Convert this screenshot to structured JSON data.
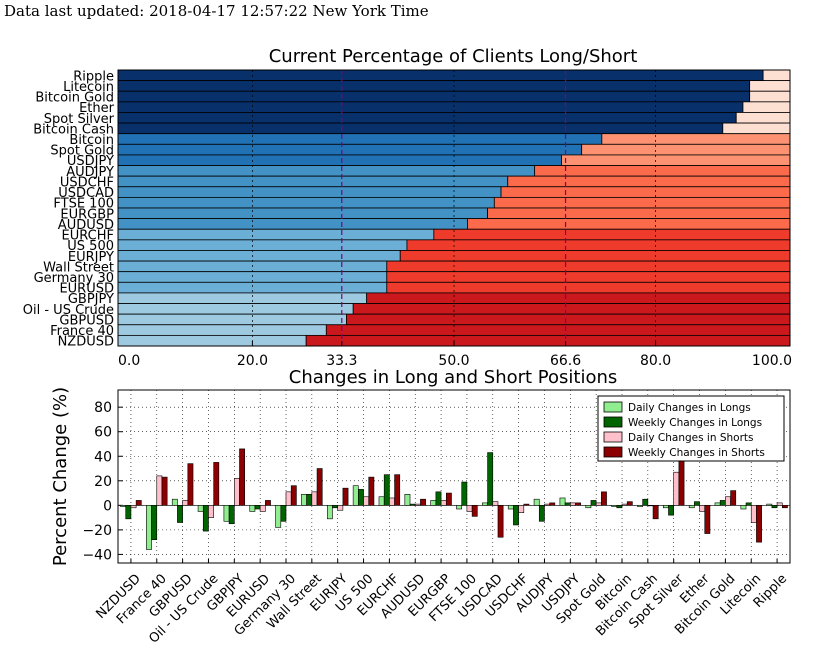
{
  "header": {
    "updated_prefix": "Data last updated: ",
    "updated_value": "2018-04-17 12:57:22 New York Time"
  },
  "colors": {
    "long_shades": [
      "#08306b",
      "#2171b5",
      "#4292c6",
      "#6baed6",
      "#9ecae1"
    ],
    "short_shades": [
      "#fee0d2",
      "#fc9272",
      "#fb6a4a",
      "#ef3b2c",
      "#cb181d"
    ],
    "threshold_line": "#800080",
    "daily_longs": "#90ee90",
    "weekly_longs": "#006400",
    "daily_shorts": "#ffc0cb",
    "weekly_shorts": "#8b0000"
  },
  "chart_data": [
    {
      "type": "bar",
      "orientation": "horizontal",
      "stacked": true,
      "title": "Current Percentage of Clients Long/Short",
      "xlim": [
        0,
        100
      ],
      "xticks": [
        "0.0",
        "20.0",
        "33.3",
        "50.0",
        "66.6",
        "80.0",
        "100.0"
      ],
      "highlight_ticks": [
        "33.3",
        "66.6"
      ],
      "threshold_lines": [
        33.3,
        66.6
      ],
      "grid": "vertical dashed",
      "categories": [
        "Ripple",
        "Litecoin",
        "Bitcoin Gold",
        "Ether",
        "Spot Silver",
        "Bitcoin Cash",
        "Bitcoin",
        "Spot Gold",
        "USDJPY",
        "AUDJPY",
        "USDCHF",
        "USDCAD",
        "FTSE 100",
        "EURGBP",
        "AUDUSD",
        "EURCHF",
        "US 500",
        "EURJPY",
        "Wall Street",
        "Germany 30",
        "EURUSD",
        "GBPJPY",
        "Oil - US Crude",
        "GBPUSD",
        "France 40",
        "NZDUSD"
      ],
      "series": [
        {
          "values": [
            96,
            94,
            94,
            93,
            92,
            90,
            72,
            69,
            66,
            62,
            58,
            57,
            56,
            55,
            52,
            47,
            43,
            42,
            40,
            40,
            40,
            37,
            35,
            34,
            31,
            28
          ]
        },
        {
          "values": [
            4,
            6,
            6,
            7,
            8,
            10,
            28,
            31,
            34,
            38,
            42,
            43,
            44,
            45,
            48,
            53,
            57,
            58,
            60,
            60,
            60,
            63,
            65,
            66,
            69,
            72
          ]
        }
      ]
    },
    {
      "type": "bar",
      "title": "Changes in Long and Short Positions",
      "ylabel": "Percent Change (%)",
      "ylim": [
        -47,
        94
      ],
      "yticks": [
        "−40",
        "−20",
        "0",
        "20",
        "40",
        "60",
        "80"
      ],
      "grid": "dotted",
      "legend": "top-right",
      "categories": [
        "NZDUSD",
        "France 40",
        "GBPUSD",
        "Oil - US Crude",
        "GBPJPY",
        "EURUSD",
        "Germany 30",
        "Wall Street",
        "EURJPY",
        "US 500",
        "EURCHF",
        "AUDUSD",
        "EURGBP",
        "FTSE 100",
        "USDCAD",
        "USDCHF",
        "AUDJPY",
        "USDJPY",
        "Spot Gold",
        "Bitcoin",
        "Bitcoin Cash",
        "Spot Silver",
        "Ether",
        "Bitcoin Gold",
        "Litecoin",
        "Ripple"
      ],
      "series": [
        {
          "name": "Daily Changes in Longs",
          "values": [
            -1,
            -36,
            5,
            -5,
            -13,
            -5,
            -18,
            9,
            -11,
            16,
            7,
            9,
            4,
            -3,
            2,
            -3,
            5,
            6,
            -2,
            -1,
            -1,
            -2,
            -2,
            2,
            -3,
            1
          ]
        },
        {
          "name": "Weekly Changes in Longs",
          "values": [
            -11,
            -28,
            -14,
            -21,
            -15,
            -3,
            -13,
            9,
            -2,
            13,
            25,
            1,
            11,
            19,
            43,
            -16,
            -13,
            2,
            4,
            -2,
            5,
            -8,
            3,
            4,
            2,
            -2
          ]
        },
        {
          "name": "Daily Changes in Shorts",
          "values": [
            -2,
            24,
            4,
            -10,
            22,
            -5,
            11,
            11,
            -4,
            7,
            6,
            1,
            4,
            -5,
            3,
            -6,
            1,
            2,
            2,
            1,
            0,
            27,
            -5,
            7,
            -14,
            2
          ]
        },
        {
          "name": "Weekly Changes in Shorts",
          "values": [
            4,
            23,
            34,
            35,
            46,
            4,
            16,
            30,
            14,
            23,
            25,
            5,
            10,
            -9,
            -26,
            1,
            2,
            2,
            11,
            3,
            -11,
            38,
            -23,
            12,
            -30,
            -2
          ]
        }
      ]
    }
  ]
}
